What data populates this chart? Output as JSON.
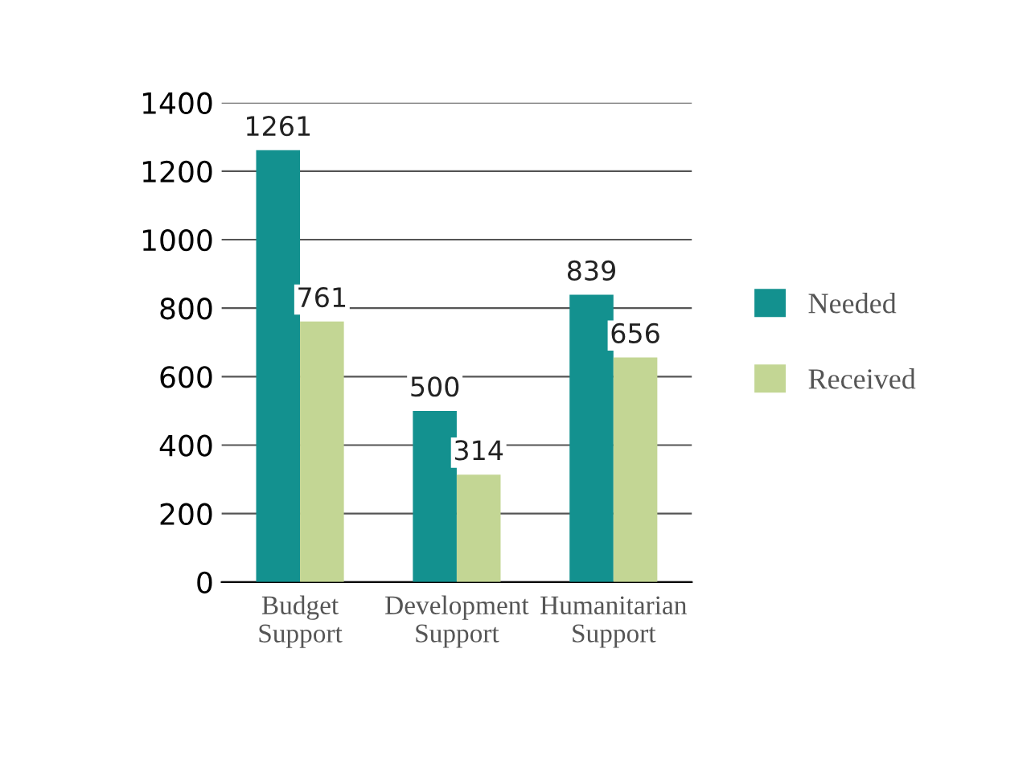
{
  "chart_data": {
    "type": "bar",
    "categories": [
      "Budget\nSupport",
      "Development\nSupport",
      "Humanitarian\nSupport"
    ],
    "series": [
      {
        "name": "Needed",
        "color": "#13918f",
        "values": [
          1261,
          500,
          839
        ]
      },
      {
        "name": "Received",
        "color": "#c3d694",
        "values": [
          761,
          314,
          656
        ]
      }
    ],
    "ylim": [
      0,
      1400
    ],
    "yticks": [
      0,
      200,
      400,
      600,
      800,
      1000,
      1200,
      1400
    ],
    "grid": "y",
    "legend": "right",
    "data_labels": true
  }
}
